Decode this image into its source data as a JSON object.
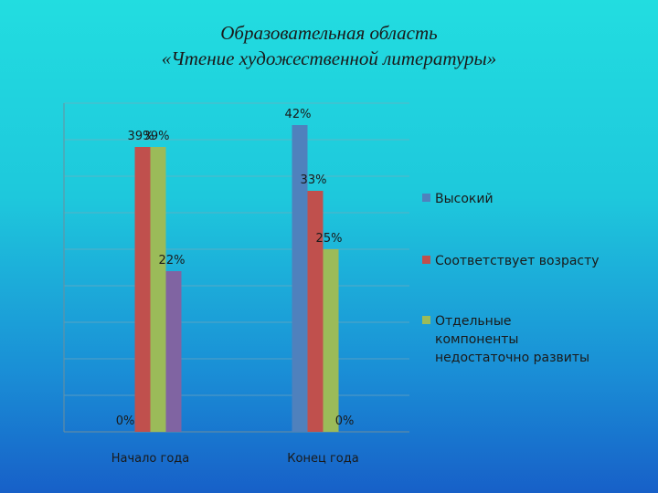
{
  "slide": {
    "title_line1": "Образовательная область",
    "title_line2": "«Чтение художественной литературы»"
  },
  "chart_data": {
    "type": "bar",
    "categories": [
      "Начало года",
      "Конец года"
    ],
    "series": [
      {
        "name": "Высокий",
        "values": [
          0,
          42
        ],
        "labels": [
          "0%",
          "42%"
        ],
        "color": "#4f81bd"
      },
      {
        "name": "Соответствует возрасту",
        "values": [
          39,
          33
        ],
        "labels": [
          "39%",
          "33%"
        ],
        "color": "#c0504d"
      },
      {
        "name": "Отдельные компоненты недостаточно развиты",
        "values": [
          39,
          25
        ],
        "labels": [
          "39%",
          "25%"
        ],
        "color": "#9bbb59"
      },
      {
        "name": "",
        "values": [
          22,
          0
        ],
        "labels": [
          "22%",
          "0%"
        ],
        "color": "#8064a2"
      }
    ],
    "legend_lines": [
      [
        "Высокий"
      ],
      [
        "Соответствует возрасту"
      ],
      [
        "Отдельные",
        "компоненты",
        "недостаточно развиты"
      ]
    ],
    "ylim": [
      0,
      45
    ],
    "grid": true,
    "legend_position": "right",
    "ylabel": "",
    "xlabel": ""
  }
}
